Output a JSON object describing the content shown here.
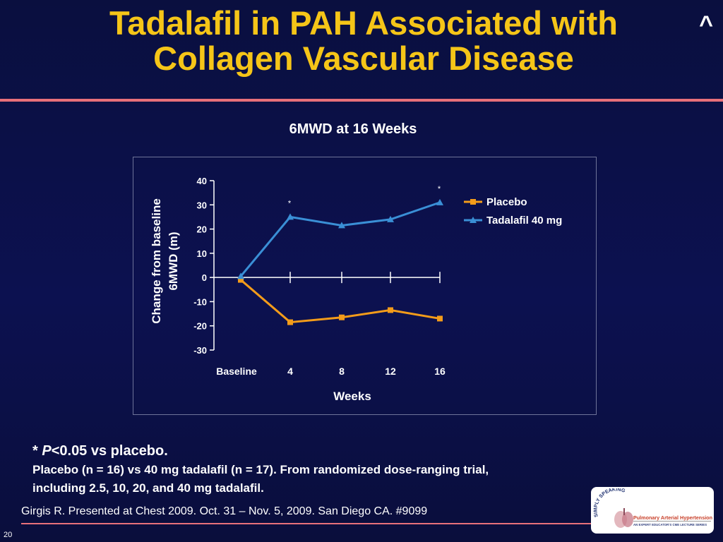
{
  "slide": {
    "title_line1": "Tadalafil in PAH Associated with",
    "title_line2": "Collagen Vascular Disease",
    "nav_caret": "^",
    "page_number": "20",
    "citation": "Girgis R. Presented at Chest 2009. Oct. 31 – Nov. 5, 2009. San Diego CA. #9099",
    "footnote_star": "*",
    "footnote_p": "P",
    "footnote_sig_rest": "<0.05 vs placebo.",
    "footnote_desc_line1": "Placebo (n = 16) vs 40 mg tadalafil (n = 17). From randomized dose-ranging trial,",
    "footnote_desc_line2": "including 2.5, 10, 20, and 40 mg tadalafil.",
    "logo_text_simply": "SIMPLY SPEAKING",
    "logo_line1": "Pulmonary Arterial Hypertension",
    "logo_line2": "AN EXPERT EDUCATOR'S CME LECTURE SERIES"
  },
  "colors": {
    "title": "#f5c518",
    "rule": "#e8707a",
    "placebo": "#f39c1a",
    "tadalafil": "#3a8fd6",
    "axis": "#ffffff"
  },
  "chart_data": {
    "type": "line",
    "title": "6MWD at 16 Weeks",
    "xlabel": "Weeks",
    "ylabel_line1": "Change from baseline",
    "ylabel_line2": "6MWD (m)",
    "categories": [
      "Baseline",
      "4",
      "8",
      "12",
      "16"
    ],
    "y_ticks": [
      40,
      30,
      20,
      10,
      0,
      -10,
      -20,
      -30
    ],
    "ylim": [
      -30,
      40
    ],
    "legend_position": "right",
    "series": [
      {
        "name": "Placebo",
        "values": [
          -1,
          -18.5,
          -16.5,
          -13.5,
          -17
        ],
        "marker": "square",
        "color": "#f39c1a"
      },
      {
        "name": "Tadalafil 40 mg",
        "values": [
          0.5,
          25,
          21.5,
          24,
          31
        ],
        "marker": "triangle",
        "color": "#3a8fd6"
      }
    ],
    "annotations": [
      {
        "category": "4",
        "series": "Tadalafil 40 mg",
        "text": "*"
      },
      {
        "category": "16",
        "series": "Tadalafil 40 mg",
        "text": "*"
      }
    ]
  }
}
